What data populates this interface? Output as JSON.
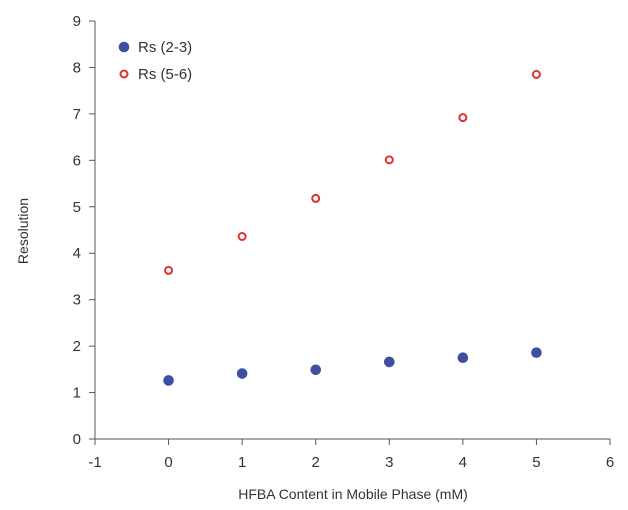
{
  "chart_data": {
    "type": "scatter",
    "xlabel": "HFBA Content in Mobile Phase (mM)",
    "ylabel": "Resolution",
    "xlim": [
      -1,
      6
    ],
    "ylim": [
      0,
      9
    ],
    "xticks": [
      "-1",
      "0",
      "1",
      "2",
      "3",
      "4",
      "5",
      "6"
    ],
    "yticks": [
      "0",
      "1",
      "2",
      "3",
      "4",
      "5",
      "6",
      "7",
      "8",
      "9"
    ],
    "grid": false,
    "legend_position": "top-left",
    "series": [
      {
        "name": "Rs (2-3)",
        "marker": "filled-circle",
        "color": "#3f4fa0",
        "x": [
          0,
          1,
          2,
          3,
          4,
          5
        ],
        "y": [
          1.26,
          1.41,
          1.49,
          1.66,
          1.75,
          1.86
        ]
      },
      {
        "name": "Rs (5-6)",
        "marker": "open-circle",
        "color": "#e0302f",
        "x": [
          0,
          1,
          2,
          3,
          4,
          5
        ],
        "y": [
          3.63,
          4.36,
          5.18,
          6.01,
          6.92,
          7.85
        ]
      }
    ]
  }
}
